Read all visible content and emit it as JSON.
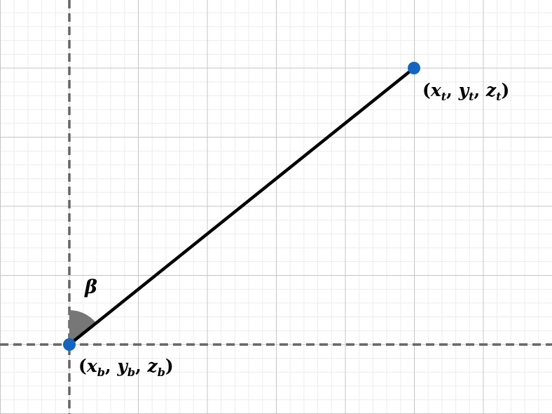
{
  "diagram": {
    "colors": {
      "background": "#ffffff",
      "grid_minor": "#ececec",
      "grid_major": "#c4c4c4",
      "axis": "#666666",
      "segment": "#000000",
      "point": "#1565c0",
      "angle_wedge": "#777777"
    },
    "angle_label": "β",
    "points": {
      "bottom": {
        "open": "(",
        "x": "x",
        "x_sub": "b",
        "y": "y",
        "y_sub": "b",
        "z": "z",
        "z_sub": "b",
        "sep": ", ",
        "close": ")"
      },
      "top": {
        "open": "(",
        "x": "x",
        "x_sub": "t",
        "y": "y",
        "y_sub": "t",
        "z": "z",
        "z_sub": "t",
        "sep": ", ",
        "close": ")"
      }
    }
  }
}
